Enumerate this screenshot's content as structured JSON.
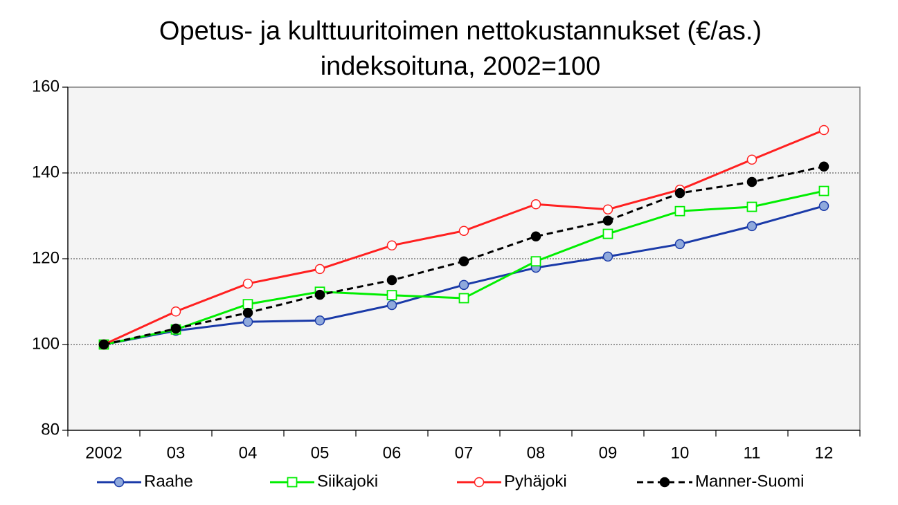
{
  "chart_data": {
    "type": "line",
    "title": [
      "Opetus- ja kulttuuritoimen nettokustannukset (€/as.)",
      "indeksoituna,  2002=100"
    ],
    "categories": [
      "2002",
      "03",
      "04",
      "05",
      "06",
      "07",
      "08",
      "09",
      "10",
      "11",
      "12"
    ],
    "series": [
      {
        "name": "Raahe",
        "color": "#1a3aa8",
        "marker": "circle",
        "marker_fill": "#8fa9dc",
        "dashed": false,
        "values": [
          100,
          103.2,
          105.3,
          105.6,
          109.2,
          113.9,
          117.9,
          120.5,
          123.4,
          127.6,
          132.3
        ]
      },
      {
        "name": "Siikajoki",
        "color": "#00ee00",
        "marker": "square",
        "marker_fill": "#ffffff",
        "dashed": false,
        "values": [
          100,
          103.5,
          109.4,
          112.3,
          111.5,
          110.8,
          119.4,
          125.8,
          131.1,
          132.1,
          135.8
        ]
      },
      {
        "name": "Pyhäjoki",
        "color": "#ff2020",
        "marker": "circle",
        "marker_fill": "#ffffff",
        "dashed": false,
        "values": [
          100,
          107.7,
          114.2,
          117.6,
          123.1,
          126.5,
          132.7,
          131.5,
          136.1,
          143.1,
          150
        ]
      },
      {
        "name": "Manner-Suomi",
        "color": "#000000",
        "marker": "circle",
        "marker_fill": "#000000",
        "dashed": true,
        "values": [
          100,
          103.7,
          107.4,
          111.6,
          115,
          119.4,
          125.2,
          128.9,
          135.3,
          137.9,
          141.5
        ]
      }
    ],
    "ylim": [
      80,
      160
    ],
    "yticks": [
      80,
      100,
      120,
      140,
      160
    ],
    "grid": true,
    "legend": "bottom"
  }
}
